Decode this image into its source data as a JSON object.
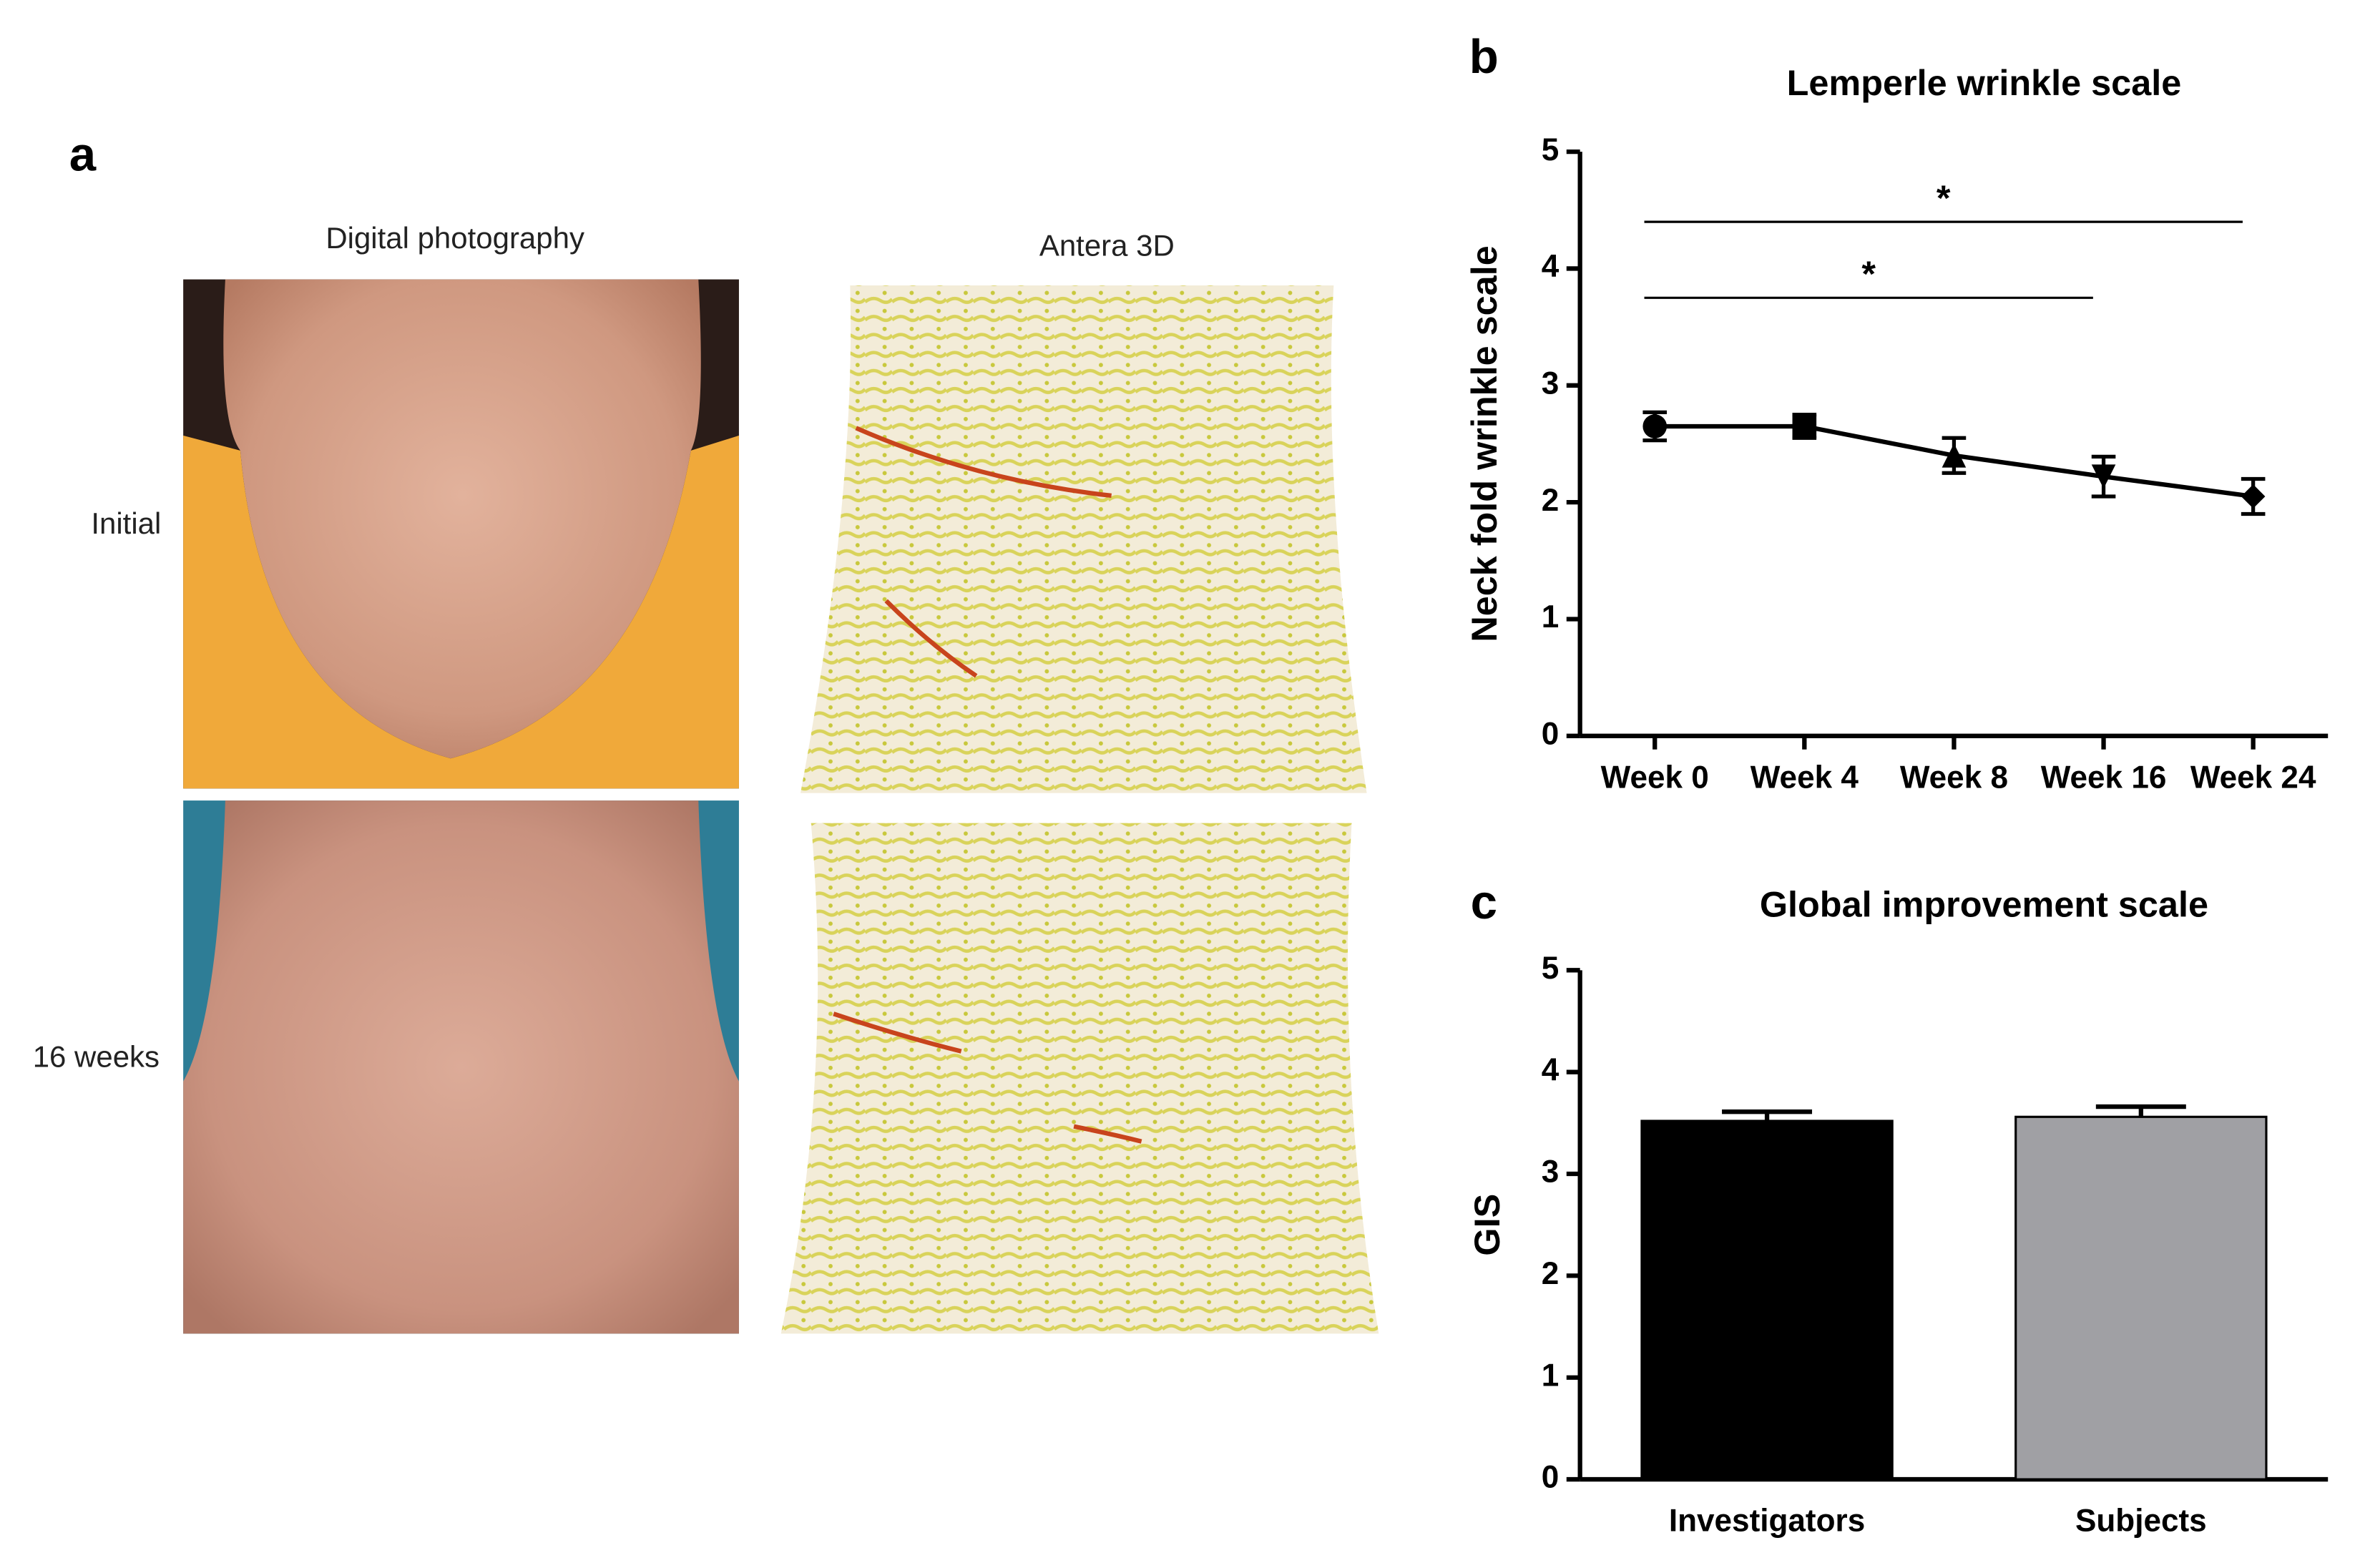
{
  "panel_a": {
    "label": "a",
    "column_titles": [
      "Digital photography",
      "Antera 3D"
    ],
    "row_labels": [
      "Initial",
      "16 weeks"
    ]
  },
  "chart_data": [
    {
      "type": "line",
      "panel_label": "b",
      "title": "Lemperle wrinkle scale",
      "y_label": "Neck fold wrinkle scale",
      "categories": [
        "Week 0",
        "Week 4",
        "Week 8",
        "Week 16",
        "Week 24"
      ],
      "values": [
        2.65,
        2.65,
        2.4,
        2.22,
        2.05
      ],
      "errors": [
        0.12,
        0.1,
        0.15,
        0.17,
        0.15
      ],
      "color": "#000000",
      "markers": [
        "circle",
        "square",
        "triangle-up",
        "triangle-down",
        "diamond"
      ],
      "ylim": [
        0,
        5
      ],
      "yticks": [
        0,
        1,
        2,
        3,
        4,
        5
      ],
      "significance": [
        {
          "from": 0,
          "to": 4,
          "y": 4.4,
          "label": "*"
        },
        {
          "from": 0,
          "to": 3,
          "y": 3.75,
          "label": "*"
        }
      ]
    },
    {
      "type": "bar",
      "panel_label": "c",
      "title": "Global improvement scale",
      "y_label": "GIS",
      "categories": [
        "Investigators",
        "Subjects"
      ],
      "values": [
        3.52,
        3.56
      ],
      "errors": [
        0.09,
        0.1
      ],
      "colors": [
        "#000000",
        "#a0a0a4"
      ],
      "ylim": [
        0,
        5
      ],
      "yticks": [
        0,
        1,
        2,
        3,
        4,
        5
      ]
    }
  ]
}
